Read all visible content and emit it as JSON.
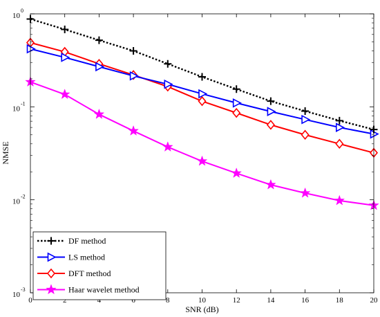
{
  "chart_data": {
    "type": "line",
    "xlabel": "SNR (dB)",
    "ylabel": "NMSE",
    "xlim": [
      0,
      20
    ],
    "ylim": [
      0.001,
      1
    ],
    "yscale": "log",
    "xticks": [
      0,
      2,
      4,
      6,
      8,
      10,
      12,
      14,
      16,
      18,
      20
    ],
    "yticks": [
      {
        "value": 0.001,
        "base": "10",
        "exp": "-3"
      },
      {
        "value": 0.01,
        "base": "10",
        "exp": "-2"
      },
      {
        "value": 0.1,
        "base": "10",
        "exp": "-1"
      },
      {
        "value": 1,
        "base": "10",
        "exp": "0"
      }
    ],
    "grid": false,
    "legend_position": "bottom-left",
    "x": [
      0,
      2,
      4,
      6,
      8,
      10,
      12,
      14,
      16,
      18,
      20
    ],
    "series": [
      {
        "name": "DF method",
        "color": "#000000",
        "marker": "plus",
        "dashed": true,
        "values": [
          0.88,
          0.68,
          0.52,
          0.4,
          0.29,
          0.21,
          0.155,
          0.115,
          0.09,
          0.071,
          0.057
        ]
      },
      {
        "name": "LS method",
        "color": "#0000ff",
        "marker": "triangle-right",
        "dashed": false,
        "values": [
          0.42,
          0.34,
          0.27,
          0.215,
          0.175,
          0.138,
          0.11,
          0.089,
          0.073,
          0.06,
          0.051
        ]
      },
      {
        "name": "DFT method",
        "color": "#ff0000",
        "marker": "diamond",
        "dashed": false,
        "values": [
          0.49,
          0.39,
          0.29,
          0.22,
          0.165,
          0.115,
          0.086,
          0.064,
          0.05,
          0.04,
          0.032
        ]
      },
      {
        "name": "Haar wavelet method",
        "color": "#ff00ff",
        "marker": "star",
        "dashed": false,
        "values": [
          0.185,
          0.136,
          0.083,
          0.055,
          0.037,
          0.026,
          0.0193,
          0.0145,
          0.0118,
          0.0098,
          0.0087
        ]
      }
    ]
  }
}
